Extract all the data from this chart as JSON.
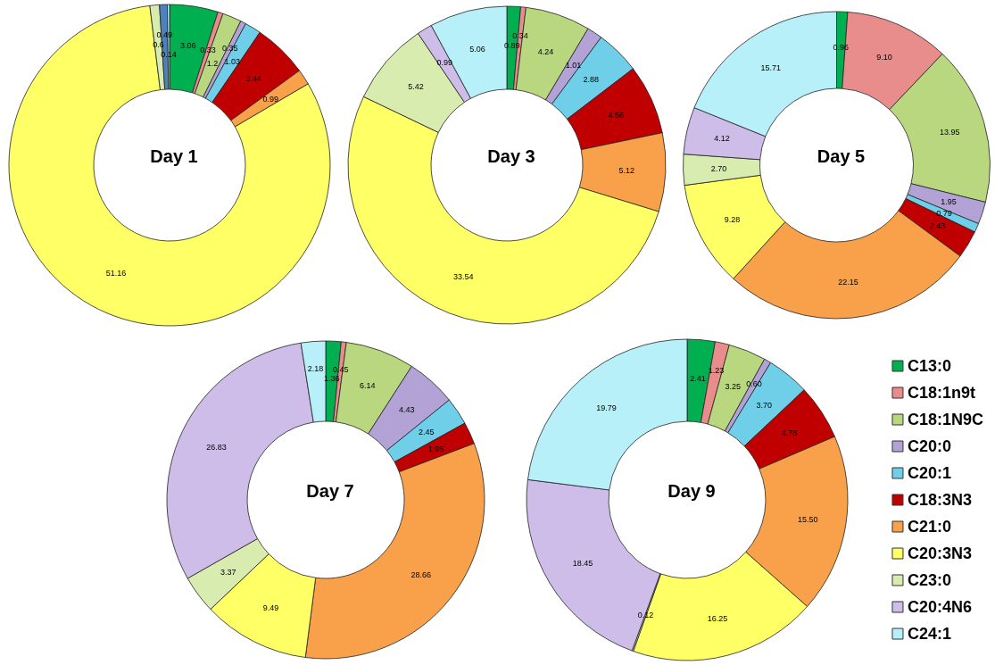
{
  "chart_data": [
    {
      "type": "donut",
      "title": "Day 1",
      "categories": [
        null,
        null,
        null,
        null,
        null,
        null,
        null,
        null,
        null,
        null,
        null
      ],
      "values": [
        3.06,
        0.33,
        1.2,
        0.35,
        1.03,
        3.44,
        0.99,
        51.16,
        0.6,
        0.49,
        0.14
      ],
      "value_labels": [
        "3.06",
        "0.33",
        "1.2",
        "0.35",
        "1.03",
        "3.44",
        "0.99",
        "51.16",
        "0.6",
        "0.49",
        "0.14"
      ],
      "colors": [
        "#00b050",
        "#e88c8c",
        "#b8d77e",
        "#b3a2d6",
        "#6fcfe8",
        "#c00000",
        "#f9a04a",
        "#ffff66",
        "#d8ecb0",
        "#4f81bd",
        "#b8f0fa"
      ]
    },
    {
      "type": "donut",
      "title": "Day 3",
      "categories": [
        null,
        null,
        null,
        null,
        null,
        null,
        null,
        null,
        null,
        null,
        null
      ],
      "values": [
        0.89,
        0.34,
        4.24,
        1.01,
        2.88,
        4.56,
        5.12,
        33.54,
        5.42,
        0.99,
        5.06
      ],
      "value_labels": [
        "0.89",
        "0.34",
        "4.24",
        "1.01",
        "2.88",
        "4.56",
        "5.12",
        "33.54",
        "5.42",
        "0.99",
        "5.06"
      ],
      "colors": [
        "#00b050",
        "#e88c8c",
        "#b8d77e",
        "#b3a2d6",
        "#6fcfe8",
        "#c00000",
        "#f9a04a",
        "#ffff66",
        "#d8ecb0",
        "#cdbde8",
        "#b8f0fa"
      ]
    },
    {
      "type": "donut",
      "title": "Day 5",
      "categories": [
        null,
        null,
        null,
        null,
        null,
        null,
        null,
        null,
        null,
        null,
        null
      ],
      "values": [
        0.96,
        9.1,
        13.95,
        1.95,
        0.79,
        2.43,
        22.15,
        9.28,
        2.7,
        4.12,
        15.71
      ],
      "value_labels": [
        "0.96",
        "9.10",
        "13.95",
        "1.95",
        "0.79",
        "2.43",
        "22.15",
        "9.28",
        "2.70",
        "4.12",
        "15.71"
      ],
      "colors": [
        "#00b050",
        "#e88c8c",
        "#b8d77e",
        "#b3a2d6",
        "#6fcfe8",
        "#c00000",
        "#f9a04a",
        "#ffff66",
        "#d8ecb0",
        "#cdbde8",
        "#b8f0fa"
      ]
    },
    {
      "type": "donut",
      "title": "Day 7",
      "categories": [
        null,
        null,
        null,
        null,
        null,
        null,
        null,
        null,
        null,
        null,
        null
      ],
      "values": [
        1.36,
        0.45,
        6.14,
        4.43,
        2.45,
        1.95,
        28.66,
        9.49,
        3.37,
        26.83,
        2.18
      ],
      "value_labels": [
        "1.36",
        "0.45",
        "6.14",
        "4.43",
        "2.45",
        "1.95",
        "28.66",
        "9.49",
        "3.37",
        "26.83",
        "2.18"
      ],
      "colors": [
        "#00b050",
        "#e88c8c",
        "#b8d77e",
        "#b3a2d6",
        "#6fcfe8",
        "#c00000",
        "#f9a04a",
        "#ffff66",
        "#d8ecb0",
        "#cdbde8",
        "#b8f0fa"
      ]
    },
    {
      "type": "donut",
      "title": "Day 9",
      "categories": [
        "C13:0",
        "C18:1n9t",
        "C18:1N9C",
        "C20:0",
        "C20:1",
        "C18:3N3",
        "C21:0",
        "C20:3N3",
        "C23:0",
        "C20:4N6",
        "C24:1"
      ],
      "values": [
        2.41,
        1.23,
        3.25,
        0.6,
        3.7,
        4.78,
        15.5,
        16.25,
        0.12,
        18.45,
        19.79
      ],
      "value_labels": [
        "2.41",
        "1.23",
        "3.25",
        "0.60",
        "3.70",
        "4.78",
        "15.50",
        "16.25",
        "0.12",
        "18.45",
        "19.79"
      ],
      "colors": [
        "#00b050",
        "#e88c8c",
        "#b8d77e",
        "#b3a2d6",
        "#6fcfe8",
        "#c00000",
        "#f9a04a",
        "#ffff66",
        "#d8ecb0",
        "#cdbde8",
        "#b8f0fa"
      ],
      "legend": "right"
    }
  ]
}
